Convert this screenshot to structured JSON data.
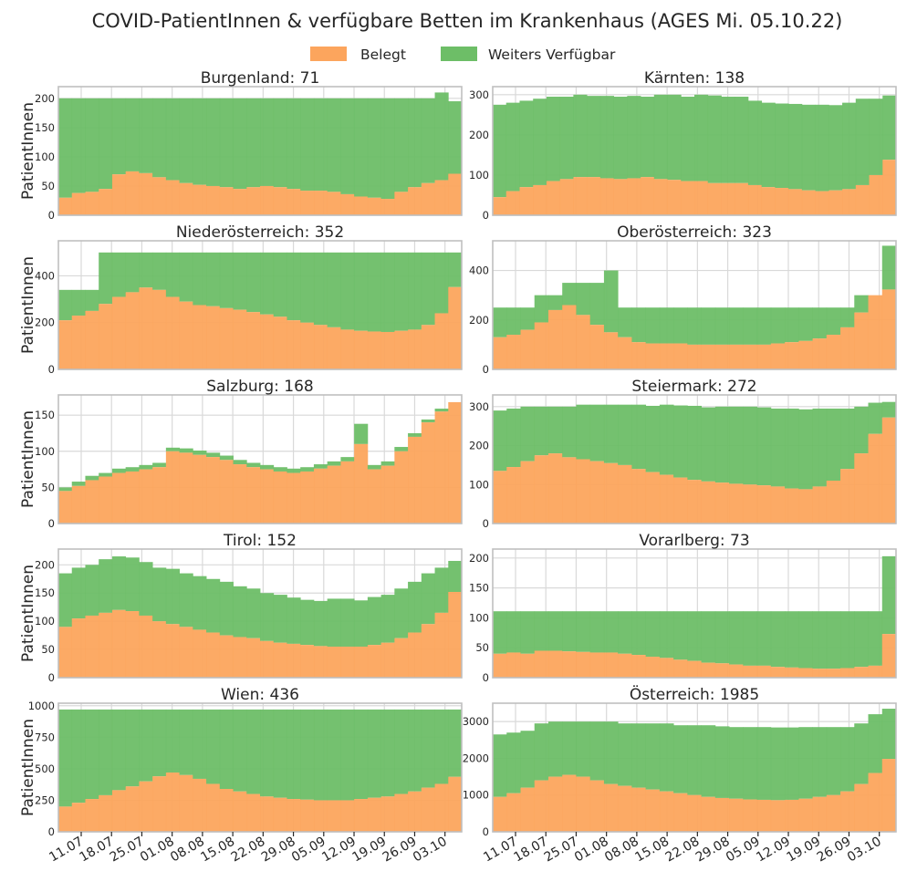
{
  "title": "COVID-PatientInnen & verfügbare Betten im Krankenhaus (AGES Mi. 05.10.22)",
  "ylabel": "PatientInnen",
  "colors": {
    "belegt": "#fca55d",
    "verfuegbar": "#6dbe67",
    "grid": "#d9d9d9",
    "frame": "#bfbfbf"
  },
  "legend": [
    {
      "label": "Belegt",
      "color": "#fca55d"
    },
    {
      "label": "Weiters Verfügbar",
      "color": "#6dbe67"
    }
  ],
  "x_tick_labels": [
    "11.07",
    "18.07",
    "25.07",
    "01.08",
    "08.08",
    "15.08",
    "22.08",
    "29.08",
    "05.09",
    "12.09",
    "19.09",
    "26.09",
    "03.10"
  ],
  "chart_data": [
    {
      "type": "bar",
      "stacked": true,
      "title": "Burgenland: 71",
      "ylim": [
        0,
        220
      ],
      "yticks": [
        0,
        50,
        100,
        150,
        200
      ],
      "series": [
        {
          "name": "Belegt",
          "values": [
            30,
            38,
            40,
            45,
            70,
            75,
            72,
            65,
            60,
            55,
            52,
            50,
            48,
            45,
            48,
            50,
            48,
            45,
            42,
            42,
            40,
            36,
            32,
            30,
            28,
            40,
            48,
            55,
            60,
            71
          ]
        },
        {
          "name": "Weiters Verfügbar",
          "values": [
            170,
            162,
            160,
            155,
            130,
            125,
            128,
            135,
            140,
            145,
            148,
            150,
            152,
            155,
            152,
            150,
            152,
            155,
            158,
            158,
            160,
            164,
            168,
            170,
            172,
            160,
            152,
            145,
            150,
            124
          ]
        }
      ]
    },
    {
      "type": "bar",
      "stacked": true,
      "title": "Kärnten: 138",
      "ylim": [
        0,
        320
      ],
      "yticks": [
        0,
        100,
        200,
        300
      ],
      "series": [
        {
          "name": "Belegt",
          "values": [
            45,
            60,
            70,
            75,
            85,
            90,
            95,
            95,
            92,
            90,
            92,
            95,
            90,
            88,
            85,
            85,
            80,
            80,
            80,
            75,
            70,
            68,
            65,
            62,
            60,
            62,
            65,
            75,
            100,
            138
          ]
        },
        {
          "name": "Weiters Verfügbar",
          "values": [
            230,
            220,
            215,
            215,
            210,
            205,
            205,
            202,
            205,
            205,
            205,
            200,
            210,
            212,
            210,
            215,
            218,
            215,
            215,
            210,
            210,
            210,
            212,
            213,
            215,
            212,
            215,
            215,
            190,
            160
          ]
        }
      ]
    },
    {
      "type": "bar",
      "stacked": true,
      "title": "Niederösterreich: 352",
      "ylim": [
        0,
        550
      ],
      "yticks": [
        0,
        200,
        400
      ],
      "series": [
        {
          "name": "Belegt",
          "values": [
            210,
            230,
            250,
            280,
            310,
            330,
            350,
            340,
            310,
            290,
            275,
            270,
            262,
            255,
            245,
            235,
            225,
            210,
            200,
            190,
            180,
            170,
            165,
            162,
            160,
            165,
            170,
            190,
            240,
            352
          ]
        },
        {
          "name": "Weiters Verfügbar",
          "values": [
            130,
            110,
            90,
            220,
            190,
            170,
            150,
            160,
            190,
            210,
            225,
            230,
            238,
            245,
            255,
            265,
            275,
            290,
            300,
            310,
            320,
            330,
            335,
            338,
            340,
            335,
            330,
            310,
            260,
            148
          ]
        }
      ]
    },
    {
      "type": "bar",
      "stacked": true,
      "title": "Oberösterreich: 323",
      "ylim": [
        0,
        520
      ],
      "yticks": [
        0,
        200,
        400
      ],
      "series": [
        {
          "name": "Belegt",
          "values": [
            130,
            140,
            160,
            190,
            240,
            260,
            220,
            180,
            150,
            130,
            110,
            105,
            105,
            105,
            100,
            100,
            100,
            100,
            100,
            100,
            105,
            110,
            115,
            125,
            140,
            170,
            230,
            300,
            323
          ]
        },
        {
          "name": "Weiters Verfügbar",
          "values": [
            120,
            110,
            90,
            110,
            60,
            90,
            130,
            170,
            250,
            120,
            140,
            145,
            145,
            145,
            150,
            150,
            150,
            150,
            150,
            150,
            145,
            140,
            135,
            125,
            110,
            80,
            70,
            0,
            177
          ]
        }
      ]
    },
    {
      "type": "bar",
      "stacked": true,
      "title": "Salzburg: 168",
      "ylim": [
        0,
        178
      ],
      "yticks": [
        0,
        50,
        100,
        150
      ],
      "series": [
        {
          "name": "Belegt",
          "values": [
            45,
            52,
            60,
            65,
            70,
            72,
            75,
            78,
            100,
            98,
            95,
            92,
            88,
            82,
            78,
            75,
            72,
            70,
            72,
            76,
            80,
            86,
            110,
            75,
            80,
            100,
            120,
            140,
            155,
            168
          ]
        },
        {
          "name": "Weiters Verfügbar",
          "values": [
            5,
            6,
            6,
            5,
            6,
            6,
            6,
            6,
            5,
            6,
            6,
            6,
            6,
            6,
            6,
            6,
            6,
            6,
            6,
            6,
            6,
            6,
            28,
            6,
            6,
            6,
            5,
            4,
            4,
            0
          ]
        }
      ]
    },
    {
      "type": "bar",
      "stacked": true,
      "title": "Steiermark: 272",
      "ylim": [
        0,
        330
      ],
      "yticks": [
        0,
        100,
        200,
        300
      ],
      "series": [
        {
          "name": "Belegt",
          "values": [
            135,
            145,
            160,
            175,
            180,
            170,
            165,
            160,
            155,
            150,
            140,
            132,
            125,
            118,
            112,
            108,
            105,
            102,
            100,
            98,
            95,
            90,
            88,
            95,
            110,
            140,
            180,
            230,
            272
          ]
        },
        {
          "name": "Weiters Verfügbar",
          "values": [
            155,
            150,
            140,
            125,
            120,
            130,
            140,
            145,
            150,
            155,
            165,
            170,
            180,
            185,
            190,
            190,
            195,
            198,
            200,
            200,
            200,
            205,
            205,
            200,
            185,
            155,
            120,
            80,
            40
          ]
        }
      ]
    },
    {
      "type": "bar",
      "stacked": true,
      "title": "Tirol: 152",
      "ylim": [
        0,
        228
      ],
      "yticks": [
        0,
        50,
        100,
        150,
        200
      ],
      "series": [
        {
          "name": "Belegt",
          "values": [
            90,
            105,
            110,
            115,
            120,
            118,
            110,
            100,
            95,
            90,
            85,
            80,
            75,
            72,
            70,
            65,
            62,
            60,
            58,
            56,
            55,
            55,
            55,
            58,
            62,
            70,
            80,
            95,
            115,
            152
          ]
        },
        {
          "name": "Weiters Verfügbar",
          "values": [
            95,
            90,
            90,
            95,
            95,
            95,
            95,
            95,
            98,
            95,
            95,
            95,
            95,
            90,
            88,
            85,
            85,
            82,
            80,
            80,
            85,
            85,
            82,
            85,
            85,
            88,
            90,
            90,
            80,
            55
          ]
        }
      ]
    },
    {
      "type": "bar",
      "stacked": true,
      "title": "Vorarlberg: 73",
      "ylim": [
        0,
        215
      ],
      "yticks": [
        0,
        50,
        100,
        150,
        200
      ],
      "series": [
        {
          "name": "Belegt",
          "values": [
            40,
            42,
            40,
            45,
            45,
            44,
            43,
            42,
            42,
            40,
            38,
            35,
            33,
            30,
            28,
            25,
            24,
            22,
            20,
            20,
            18,
            17,
            16,
            15,
            15,
            16,
            18,
            20,
            73
          ]
        },
        {
          "name": "Weiters Verfügbar",
          "values": [
            71,
            69,
            71,
            66,
            66,
            67,
            68,
            69,
            69,
            71,
            73,
            76,
            78,
            81,
            83,
            86,
            87,
            89,
            91,
            91,
            93,
            94,
            95,
            96,
            96,
            95,
            93,
            91,
            130
          ]
        }
      ]
    },
    {
      "type": "bar",
      "stacked": true,
      "title": "Wien: 436",
      "ylim": [
        0,
        1020
      ],
      "yticks": [
        0,
        250,
        500,
        750,
        1000
      ],
      "series": [
        {
          "name": "Belegt",
          "values": [
            200,
            230,
            260,
            290,
            330,
            360,
            400,
            440,
            470,
            450,
            420,
            380,
            340,
            320,
            300,
            280,
            270,
            260,
            255,
            250,
            250,
            250,
            260,
            270,
            280,
            300,
            320,
            350,
            380,
            436
          ]
        },
        {
          "name": "Weiters Verfügbar",
          "values": [
            770,
            740,
            710,
            680,
            640,
            610,
            570,
            530,
            500,
            520,
            550,
            590,
            630,
            650,
            670,
            690,
            700,
            710,
            715,
            720,
            720,
            720,
            710,
            700,
            690,
            670,
            650,
            620,
            590,
            534
          ]
        }
      ]
    },
    {
      "type": "bar",
      "stacked": true,
      "title": "Österreich: 1985",
      "ylim": [
        0,
        3500
      ],
      "yticks": [
        0,
        1000,
        2000,
        3000
      ],
      "series": [
        {
          "name": "Belegt",
          "values": [
            950,
            1050,
            1200,
            1400,
            1500,
            1550,
            1500,
            1400,
            1300,
            1250,
            1200,
            1150,
            1100,
            1050,
            1000,
            950,
            920,
            900,
            880,
            870,
            860,
            870,
            900,
            950,
            1000,
            1100,
            1300,
            1600,
            1985
          ]
        },
        {
          "name": "Weiters Verfügbar",
          "values": [
            1700,
            1650,
            1550,
            1550,
            1500,
            1450,
            1500,
            1600,
            1700,
            1700,
            1750,
            1800,
            1850,
            1850,
            1900,
            1950,
            1950,
            1950,
            1970,
            1980,
            1980,
            1970,
            1950,
            1900,
            1850,
            1750,
            1650,
            1600,
            1365
          ]
        }
      ]
    }
  ]
}
